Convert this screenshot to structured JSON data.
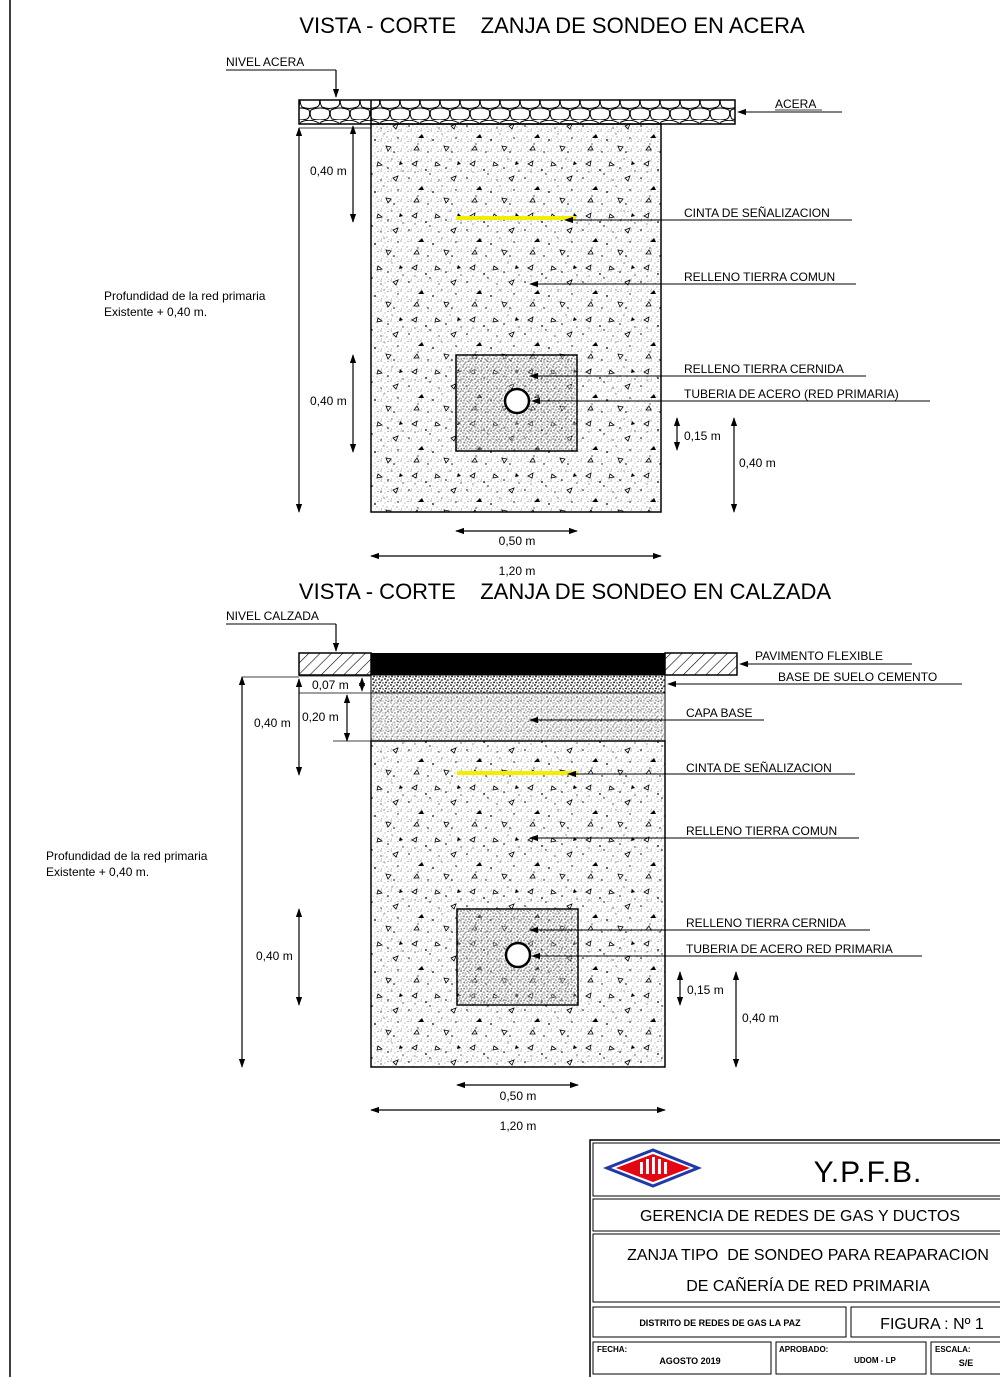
{
  "top_section": {
    "title": "VISTA - CORTE    ZANJA DE SONDEO EN ACERA",
    "level_label": "NIVEL ACERA",
    "callouts": {
      "surface": "ACERA",
      "tape": "CINTA DE SEÑALIZACION",
      "common_fill": "RELLENO TIERRA COMUN",
      "sifted_fill": "RELLENO TIERRA CERNIDA",
      "pipe": "TUBERIA DE ACERO (RED PRIMARIA)"
    },
    "dims": {
      "upper_depth": "0,40 m",
      "lower_depth": "0,40 m",
      "pipe_cover": "0,15 m",
      "bottom_zone": "0,40 m",
      "sifted_width": "0,50 m",
      "trench_width": "1,20 m"
    },
    "depth_note": [
      "Profundidad de la red primaria",
      "Existente + 0,40 m."
    ]
  },
  "bottom_section": {
    "title": "VISTA - CORTE    ZANJA DE SONDEO EN CALZADA",
    "level_label": "NIVEL CALZADA",
    "callouts": {
      "pavement": "PAVIMENTO FLEXIBLE",
      "soil_cement": "BASE DE SUELO CEMENTO",
      "base_layer": "CAPA BASE",
      "tape": "CINTA DE SEÑALIZACION",
      "common_fill": "RELLENO TIERRA COMUN",
      "sifted_fill": "RELLENO TIERRA CERNIDA",
      "pipe": "TUBERIA DE ACERO RED PRIMARIA"
    },
    "dims": {
      "pavement_thickness": "0,07 m",
      "base_thickness": "0,20 m",
      "upper_depth": "0,40 m",
      "lower_depth": "0,40 m",
      "pipe_cover": "0,15 m",
      "bottom_zone": "0,40 m",
      "sifted_width": "0,50 m",
      "trench_width": "1,20 m"
    },
    "depth_note": [
      "Profundidad de la red primaria",
      "Existente + 0,40 m."
    ]
  },
  "title_block": {
    "company": "Y.P.F.B.",
    "department": "GERENCIA DE REDES DE GAS Y DUCTOS",
    "drawing_title": [
      "ZANJA TIPO  DE SONDEO PARA REAPARACION",
      "DE CAÑERÍA DE RED PRIMARIA"
    ],
    "district": "DISTRITO DE REDES DE GAS LA PAZ",
    "figure": "FIGURA : Nº 1",
    "date_label": "FECHA:",
    "date_value": "AGOSTO 2019",
    "approved_label": "APROBADO:",
    "approved_value": "UDOM - LP",
    "scale_label": "ESCALA:",
    "scale_value": "S/E"
  },
  "colors": {
    "tape": "#f2ee00",
    "logo_red": "#e30613",
    "logo_blue": "#1f3aa8",
    "line": "#000000"
  }
}
